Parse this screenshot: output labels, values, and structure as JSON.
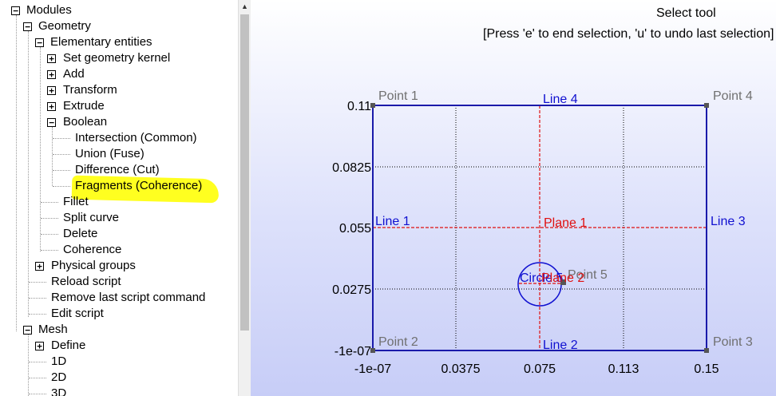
{
  "tree": {
    "nodes": [
      {
        "label": "Modules",
        "expander": "−"
      },
      {
        "label": "Geometry",
        "expander": "−"
      },
      {
        "label": "Elementary entities",
        "expander": "−"
      },
      {
        "label": "Set geometry kernel",
        "expander": "+"
      },
      {
        "label": "Add",
        "expander": "+"
      },
      {
        "label": "Transform",
        "expander": "+"
      },
      {
        "label": "Extrude",
        "expander": "+"
      },
      {
        "label": "Boolean",
        "expander": "−"
      },
      {
        "label": "Intersection (Common)"
      },
      {
        "label": "Union (Fuse)"
      },
      {
        "label": "Difference (Cut)"
      },
      {
        "label": "Fragments (Coherence)",
        "highlighted": true
      },
      {
        "label": "Fillet"
      },
      {
        "label": "Split curve"
      },
      {
        "label": "Delete"
      },
      {
        "label": "Coherence"
      },
      {
        "label": "Physical groups",
        "expander": "+"
      },
      {
        "label": "Reload script"
      },
      {
        "label": "Remove last script command"
      },
      {
        "label": "Edit script"
      },
      {
        "label": "Mesh",
        "expander": "−"
      },
      {
        "label": "Define",
        "expander": "+"
      },
      {
        "label": "1D"
      },
      {
        "label": "2D"
      },
      {
        "label": "3D"
      }
    ]
  },
  "viewport": {
    "status_title": "Select tool",
    "status_hint": "[Press 'e' to end selection, 'u' to undo last selection]",
    "axes": {
      "x_ticks": [
        "-1e-07",
        "0.0375",
        "0.075",
        "0.113",
        "0.15"
      ],
      "y_ticks": [
        "0.11",
        "0.0825",
        "0.055",
        "0.0275",
        "-1e-07"
      ]
    },
    "points": [
      {
        "label": "Point 1"
      },
      {
        "label": "Point 4"
      },
      {
        "label": "Point 2"
      },
      {
        "label": "Point 3"
      },
      {
        "label": "Point 5"
      }
    ],
    "lines": [
      {
        "label": "Line 4"
      },
      {
        "label": "Line 1"
      },
      {
        "label": "Line 3"
      },
      {
        "label": "Line 2"
      }
    ],
    "surfaces": [
      {
        "label": "Plane 1"
      },
      {
        "label": "Plane 2"
      }
    ],
    "circle": {
      "label": "Circle 5"
    },
    "colors": {
      "line": "#1a1aaa",
      "line_label": "#1010d0",
      "plane": "#e01010",
      "point": "#707070",
      "highlight": "#ffff20"
    }
  }
}
